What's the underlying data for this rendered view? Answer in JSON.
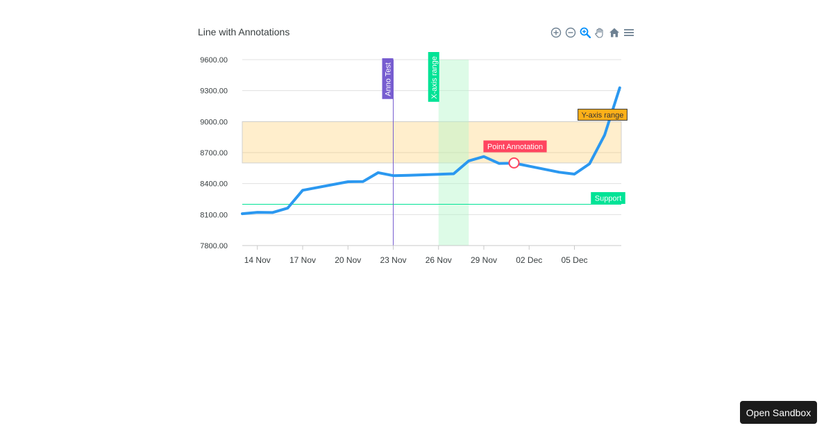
{
  "chart_data": {
    "type": "line",
    "title": "Line with Annotations",
    "x": [
      "13 Nov",
      "14 Nov",
      "15 Nov",
      "16 Nov",
      "17 Nov",
      "20 Nov",
      "21 Nov",
      "22 Nov",
      "23 Nov",
      "24 Nov",
      "27 Nov",
      "28 Nov",
      "29 Nov",
      "30 Nov",
      "01 Dec",
      "04 Dec",
      "05 Dec",
      "06 Dec",
      "07 Dec",
      "08 Dec"
    ],
    "series": [
      {
        "values": [
          8108,
          8122,
          8120,
          8162,
          8335,
          8418,
          8420,
          8506,
          8477,
          8480,
          8495,
          8620,
          8662,
          8595,
          8598,
          8510,
          8492,
          8592,
          8870,
          9328
        ],
        "color": "#2b98f0"
      }
    ],
    "xticks": [
      "14 Nov",
      "17 Nov",
      "20 Nov",
      "23 Nov",
      "26 Nov",
      "29 Nov",
      "02 Dec",
      "05 Dec"
    ],
    "yticks": [
      "9600.00",
      "9300.00",
      "9000.00",
      "8700.00",
      "8400.00",
      "8100.00",
      "7800.00"
    ],
    "ylim": [
      7800,
      9600
    ],
    "annotations": {
      "y_line": {
        "value": 8200,
        "label": "Support",
        "color": "#00e396"
      },
      "y_range": {
        "from": 8600,
        "to": 9000,
        "label": "Y-axis range",
        "fill": "#feb019",
        "label_color": "#feb019"
      },
      "x_line": {
        "value": "23 Nov",
        "label": "Anno Test",
        "color": "#775dd0"
      },
      "x_range": {
        "from": "26 Nov",
        "to": "28 Nov",
        "label": "X-axis range",
        "fill": "#b3f7ca",
        "label_color": "#00e396"
      },
      "point": {
        "x": "01 Dec",
        "y": 8600,
        "label": "Point Annotation",
        "color": "#ff4560"
      }
    }
  },
  "toolbar": {
    "icons": [
      "zoom-in-icon",
      "zoom-out-icon",
      "zoom-select-icon",
      "pan-icon",
      "reset-home-icon",
      "menu-icon"
    ]
  },
  "sandbox": {
    "label": "Open Sandbox"
  }
}
